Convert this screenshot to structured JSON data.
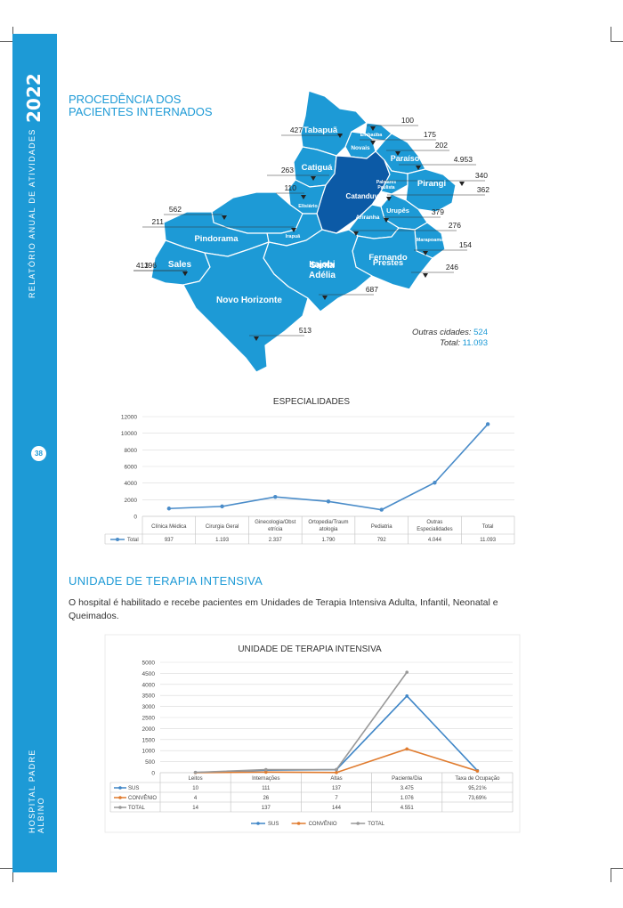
{
  "sidebar": {
    "year": "2022",
    "report_label": "RELATÓRIO ANUAL DE ATIVIDADES",
    "page_number": "38",
    "hospital_label": "HOSPITAL PADRE ALBINO"
  },
  "map_section": {
    "title_line1": "PROCEDÊNCIA DOS",
    "title_line2": "PACIENTES INTERNADOS",
    "cities": [
      {
        "name": "Tabapuã",
        "value": "427"
      },
      {
        "name": "Embaúba",
        "value": "100"
      },
      {
        "name": "Novais",
        "value": "175"
      },
      {
        "name": "Paraíso",
        "value": "202"
      },
      {
        "name": "Catanduva",
        "value": "4.953"
      },
      {
        "name": "Catiguá",
        "value": "263"
      },
      {
        "name": "Palmares Paulista",
        "value": "340"
      },
      {
        "name": "Pirangi",
        "value": "362"
      },
      {
        "name": "Elisiário",
        "value": "110"
      },
      {
        "name": "Urupês",
        "value": "379"
      },
      {
        "name": "Ariranha",
        "value": "276"
      },
      {
        "name": "Pindorama",
        "value": "562"
      },
      {
        "name": "Irapuã",
        "value": "211"
      },
      {
        "name": "Marapoama",
        "value": "154"
      },
      {
        "name": "Fernando Prestes",
        "value": "246"
      },
      {
        "name": "Santa Adélia",
        "value": "413"
      },
      {
        "name": "Sales",
        "value": "196"
      },
      {
        "name": "Itajobi",
        "value": "687"
      },
      {
        "name": "Novo Horizonte",
        "value": "513"
      }
    ],
    "others_label": "Outras cidades:",
    "others_value": "524",
    "total_label": "Total:",
    "total_value": "11.093",
    "colors": {
      "region": "#1d9ad6",
      "highlight": "#0c5aa6",
      "border": "#ffffff"
    }
  },
  "chart_data": [
    {
      "type": "line",
      "title": "ESPECIALIDADES",
      "categories": [
        "Clínica Médica",
        "Cirurgia Geral",
        "Ginecologia/Obstetrícia",
        "Ortopedia/Traumatologia",
        "Pediatria",
        "Outras Especialidades",
        "Total"
      ],
      "category_lines": [
        [
          "Clínica Médica"
        ],
        [
          "Cirurgia Geral"
        ],
        [
          "Ginecologia/Obst",
          "etrícia"
        ],
        [
          "Ortopedia/Traum",
          "atologia"
        ],
        [
          "Pediatria"
        ],
        [
          "Outras",
          "Especialidades"
        ],
        [
          "Total"
        ]
      ],
      "series": [
        {
          "name": "Total",
          "values": [
            937,
            1193,
            2337,
            1790,
            792,
            4044,
            11093
          ],
          "labels": [
            "937",
            "1.193",
            "2.337",
            "1.790",
            "792",
            "4.044",
            "11.093"
          ],
          "color": "#4a8cc9"
        }
      ],
      "yticks": [
        0,
        2000,
        4000,
        6000,
        8000,
        10000,
        12000
      ],
      "ylim": [
        0,
        12000
      ],
      "grid": true,
      "legend": "data-table"
    },
    {
      "type": "line",
      "title": "UNIDADE DE TERAPIA INTENSIVA",
      "categories": [
        "Leitos",
        "Internações",
        "Altas",
        "Paciente/Dia",
        "Taxa de Ocupação"
      ],
      "series": [
        {
          "name": "SUS",
          "values": [
            10,
            111,
            137,
            3475,
            95.21
          ],
          "labels": [
            "10",
            "111",
            "137",
            "3.475",
            "95,21%"
          ],
          "color": "#3f86c7"
        },
        {
          "name": "CONVÊNIO",
          "values": [
            4,
            26,
            7,
            1076,
            73.69
          ],
          "labels": [
            "4",
            "26",
            "7",
            "1.076",
            "73,69%"
          ],
          "color": "#e07b2e"
        },
        {
          "name": "TOTAL",
          "values": [
            14,
            137,
            144,
            4551,
            null
          ],
          "labels": [
            "14",
            "137",
            "144",
            "4.551",
            ""
          ],
          "color": "#999999"
        }
      ],
      "yticks": [
        0,
        500,
        1000,
        1500,
        2000,
        2500,
        3000,
        3500,
        4000,
        4500,
        5000
      ],
      "ylim": [
        0,
        5000
      ],
      "grid": true,
      "legend": "bottom"
    }
  ],
  "uti_section": {
    "title": "UNIDADE DE TERAPIA INTENSIVA",
    "text": "O hospital é habilitado e recebe pacientes em Unidades de Terapia Intensiva Adulta, Infantil, Neonatal e Queimados."
  }
}
